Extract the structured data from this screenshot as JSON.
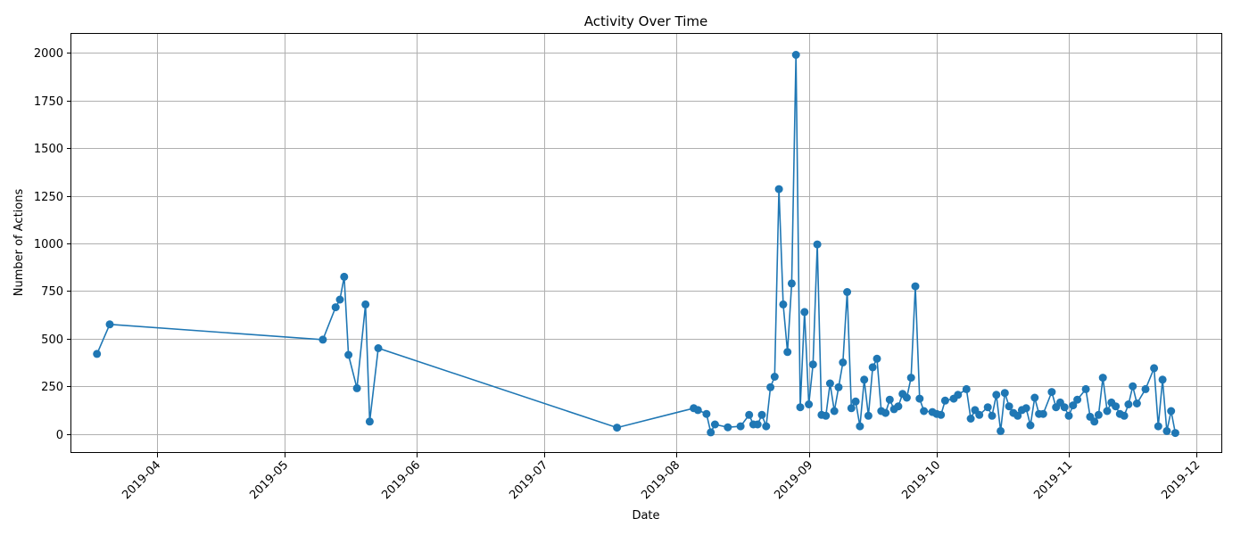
{
  "chart_data": {
    "type": "line",
    "title": "Activity Over Time",
    "xlabel": "Date",
    "ylabel": "Number of Actions",
    "grid": true,
    "marker": "circle",
    "colors": {
      "series": "#1f77b4"
    },
    "xlim": [
      "2019-03-12",
      "2019-12-07"
    ],
    "ylim": [
      -100,
      2100
    ],
    "x_ticks": [
      "2019-04-01",
      "2019-05-01",
      "2019-06-01",
      "2019-07-01",
      "2019-08-01",
      "2019-09-01",
      "2019-10-01",
      "2019-11-01",
      "2019-12-01"
    ],
    "x_tick_labels": [
      "2019-04",
      "2019-05",
      "2019-06",
      "2019-07",
      "2019-08",
      "2019-09",
      "2019-10",
      "2019-11",
      "2019-12"
    ],
    "y_ticks": [
      0,
      250,
      500,
      750,
      1000,
      1250,
      1500,
      1750,
      2000
    ],
    "y_tick_labels": [
      "0",
      "250",
      "500",
      "750",
      "1000",
      "1250",
      "1500",
      "1750",
      "2000"
    ],
    "series": [
      {
        "points": [
          [
            "2019-03-18",
            420
          ],
          [
            "2019-03-21",
            575
          ],
          [
            "2019-05-10",
            495
          ],
          [
            "2019-05-13",
            665
          ],
          [
            "2019-05-14",
            705
          ],
          [
            "2019-05-15",
            825
          ],
          [
            "2019-05-16",
            415
          ],
          [
            "2019-05-18",
            240
          ],
          [
            "2019-05-20",
            680
          ],
          [
            "2019-05-21",
            65
          ],
          [
            "2019-05-23",
            450
          ],
          [
            "2019-07-18",
            33
          ],
          [
            "2019-08-05",
            135
          ],
          [
            "2019-08-06",
            125
          ],
          [
            "2019-08-08",
            105
          ],
          [
            "2019-08-09",
            8
          ],
          [
            "2019-08-10",
            50
          ],
          [
            "2019-08-13",
            35
          ],
          [
            "2019-08-16",
            40
          ],
          [
            "2019-08-18",
            100
          ],
          [
            "2019-08-19",
            50
          ],
          [
            "2019-08-20",
            50
          ],
          [
            "2019-08-21",
            100
          ],
          [
            "2019-08-22",
            40
          ],
          [
            "2019-08-23",
            245
          ],
          [
            "2019-08-24",
            300
          ],
          [
            "2019-08-25",
            1285
          ],
          [
            "2019-08-26",
            680
          ],
          [
            "2019-08-27",
            430
          ],
          [
            "2019-08-28",
            790
          ],
          [
            "2019-08-29",
            1990
          ],
          [
            "2019-08-30",
            140
          ],
          [
            "2019-08-31",
            640
          ],
          [
            "2019-09-01",
            155
          ],
          [
            "2019-09-02",
            365
          ],
          [
            "2019-09-03",
            995
          ],
          [
            "2019-09-04",
            100
          ],
          [
            "2019-09-05",
            95
          ],
          [
            "2019-09-06",
            265
          ],
          [
            "2019-09-07",
            120
          ],
          [
            "2019-09-08",
            245
          ],
          [
            "2019-09-09",
            375
          ],
          [
            "2019-09-10",
            745
          ],
          [
            "2019-09-11",
            135
          ],
          [
            "2019-09-12",
            170
          ],
          [
            "2019-09-13",
            40
          ],
          [
            "2019-09-14",
            285
          ],
          [
            "2019-09-15",
            95
          ],
          [
            "2019-09-16",
            350
          ],
          [
            "2019-09-17",
            395
          ],
          [
            "2019-09-18",
            120
          ],
          [
            "2019-09-19",
            110
          ],
          [
            "2019-09-20",
            180
          ],
          [
            "2019-09-21",
            130
          ],
          [
            "2019-09-22",
            145
          ],
          [
            "2019-09-23",
            210
          ],
          [
            "2019-09-24",
            190
          ],
          [
            "2019-09-25",
            295
          ],
          [
            "2019-09-26",
            775
          ],
          [
            "2019-09-27",
            185
          ],
          [
            "2019-09-28",
            120
          ],
          [
            "2019-09-30",
            115
          ],
          [
            "2019-10-01",
            105
          ],
          [
            "2019-10-02",
            100
          ],
          [
            "2019-10-03",
            175
          ],
          [
            "2019-10-05",
            185
          ],
          [
            "2019-10-06",
            205
          ],
          [
            "2019-10-08",
            235
          ],
          [
            "2019-10-09",
            80
          ],
          [
            "2019-10-10",
            125
          ],
          [
            "2019-10-11",
            100
          ],
          [
            "2019-10-13",
            140
          ],
          [
            "2019-10-14",
            95
          ],
          [
            "2019-10-15",
            205
          ],
          [
            "2019-10-16",
            15
          ],
          [
            "2019-10-17",
            215
          ],
          [
            "2019-10-18",
            145
          ],
          [
            "2019-10-19",
            110
          ],
          [
            "2019-10-20",
            95
          ],
          [
            "2019-10-21",
            125
          ],
          [
            "2019-10-22",
            135
          ],
          [
            "2019-10-23",
            45
          ],
          [
            "2019-10-24",
            190
          ],
          [
            "2019-10-25",
            105
          ],
          [
            "2019-10-26",
            105
          ],
          [
            "2019-10-28",
            220
          ],
          [
            "2019-10-29",
            140
          ],
          [
            "2019-10-30",
            165
          ],
          [
            "2019-10-31",
            140
          ],
          [
            "2019-11-01",
            95
          ],
          [
            "2019-11-02",
            150
          ],
          [
            "2019-11-03",
            180
          ],
          [
            "2019-11-05",
            235
          ],
          [
            "2019-11-06",
            90
          ],
          [
            "2019-11-07",
            65
          ],
          [
            "2019-11-08",
            100
          ],
          [
            "2019-11-09",
            295
          ],
          [
            "2019-11-10",
            120
          ],
          [
            "2019-11-11",
            165
          ],
          [
            "2019-11-12",
            145
          ],
          [
            "2019-11-13",
            105
          ],
          [
            "2019-11-14",
            95
          ],
          [
            "2019-11-15",
            155
          ],
          [
            "2019-11-16",
            250
          ],
          [
            "2019-11-17",
            160
          ],
          [
            "2019-11-19",
            235
          ],
          [
            "2019-11-21",
            345
          ],
          [
            "2019-11-22",
            40
          ],
          [
            "2019-11-23",
            285
          ],
          [
            "2019-11-24",
            15
          ],
          [
            "2019-11-25",
            120
          ],
          [
            "2019-11-26",
            5
          ]
        ]
      }
    ]
  }
}
